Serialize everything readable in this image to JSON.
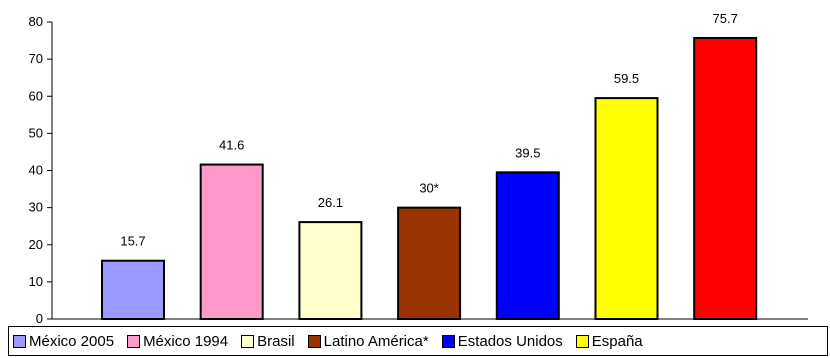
{
  "chart_data": {
    "type": "bar",
    "categories": [
      "México 2005",
      "México 1994",
      "Brasil",
      "Latino América*",
      "Estados Unidos",
      "España",
      ""
    ],
    "values": [
      15.7,
      41.6,
      26.1,
      30,
      39.5,
      59.5,
      75.7
    ],
    "data_labels": [
      "15.7",
      "41.6",
      "26.1",
      "30*",
      "39.5",
      "59.5",
      "75.7"
    ],
    "colors": [
      "#9999ff",
      "#ff99cc",
      "#ffffcc",
      "#993300",
      "#0000ff",
      "#ffff00",
      "#ff0000"
    ],
    "ylim": [
      0,
      80
    ],
    "yticks": [
      0,
      10,
      20,
      30,
      40,
      50,
      60,
      70,
      80
    ],
    "title": "",
    "xlabel": "",
    "ylabel": "",
    "grid": false,
    "legend_placement": "bottom"
  },
  "legend": [
    {
      "label": "México 2005",
      "color": "#9999ff"
    },
    {
      "label": "México 1994",
      "color": "#ff99cc"
    },
    {
      "label": "Brasil",
      "color": "#ffffcc"
    },
    {
      "label": "Latino América*",
      "color": "#993300"
    },
    {
      "label": "Estados Unidos",
      "color": "#0000ff"
    },
    {
      "label": "España",
      "color": "#ffff00"
    }
  ]
}
